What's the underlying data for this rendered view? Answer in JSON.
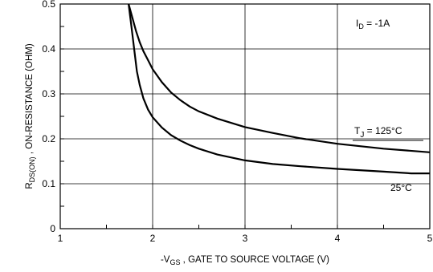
{
  "chart_data": {
    "type": "line",
    "xlabel_parts": {
      "prefix": "-V",
      "sub": "GS",
      "rest": " , GATE TO SOURCE VOLTAGE (V)"
    },
    "ylabel_parts": {
      "pre": "R",
      "sub": "DS(ON)",
      "rest": " , ON-RESISTANCE (OHM)"
    },
    "xlim": [
      1,
      5
    ],
    "ylim": [
      0,
      0.5
    ],
    "xticks": [
      1,
      2,
      3,
      4,
      5
    ],
    "yticks": [
      0,
      0.1,
      0.2,
      0.3,
      0.4,
      0.5
    ],
    "xtick_labels": [
      "1",
      "2",
      "3",
      "4",
      "5"
    ],
    "ytick_labels": [
      "0",
      "0.1",
      "0.2",
      "0.3",
      "0.4",
      "0.5"
    ],
    "grid": true,
    "condition": {
      "pre": "I",
      "sub": "D",
      "rest": " = -1A"
    },
    "series": [
      {
        "label_parts": {
          "pre": "T",
          "sub": "J",
          "rest": " = 125°C"
        },
        "x": [
          1.74,
          1.78,
          1.82,
          1.86,
          1.9,
          1.95,
          2.0,
          2.1,
          2.2,
          2.3,
          2.4,
          2.5,
          2.7,
          3.0,
          3.3,
          3.6,
          4.0,
          4.5,
          5.0
        ],
        "y": [
          0.5,
          0.47,
          0.44,
          0.415,
          0.395,
          0.375,
          0.355,
          0.326,
          0.303,
          0.286,
          0.272,
          0.261,
          0.245,
          0.226,
          0.213,
          0.201,
          0.189,
          0.178,
          0.17
        ]
      },
      {
        "label_parts": {
          "pre": "",
          "sub": "",
          "rest": "25°C"
        },
        "x": [
          1.74,
          1.77,
          1.8,
          1.83,
          1.86,
          1.9,
          1.95,
          2.0,
          2.1,
          2.2,
          2.3,
          2.4,
          2.5,
          2.7,
          3.0,
          3.3,
          3.6,
          4.0,
          4.5,
          4.8,
          5.0
        ],
        "y": [
          0.5,
          0.45,
          0.4,
          0.35,
          0.32,
          0.29,
          0.265,
          0.248,
          0.225,
          0.208,
          0.196,
          0.186,
          0.178,
          0.165,
          0.152,
          0.144,
          0.139,
          0.133,
          0.127,
          0.123,
          0.123
        ]
      }
    ]
  }
}
